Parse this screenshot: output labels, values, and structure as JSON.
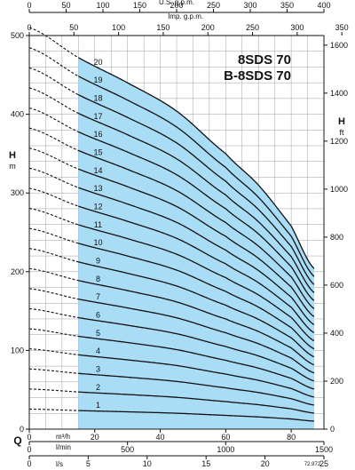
{
  "chart_data": {
    "type": "line",
    "title_lines": [
      "8SDS 70",
      "B-8SDS 70"
    ],
    "y_left": {
      "label": "H",
      "unit": "m",
      "range": [
        0,
        500
      ],
      "ticks": [
        0,
        100,
        200,
        300,
        400,
        500
      ]
    },
    "y_right": {
      "label": "H",
      "unit": "ft",
      "range": [
        0,
        1640
      ],
      "ticks": [
        0,
        200,
        400,
        600,
        800,
        1000,
        1200,
        1400,
        1600
      ]
    },
    "x_main": {
      "label": "Q",
      "unit": "m³/h",
      "range": [
        0,
        90
      ],
      "ticks": [
        0,
        20,
        40,
        60,
        80
      ]
    },
    "x_lmin": {
      "unit": "l/min",
      "range": [
        0,
        1500
      ],
      "ticks": [
        0,
        500,
        1000,
        1500
      ]
    },
    "x_ls": {
      "unit": "l/s",
      "range": [
        0,
        25
      ],
      "ticks": [
        0,
        5,
        10,
        15,
        20,
        25
      ],
      "labeled_ticks": [
        0,
        5,
        10,
        15,
        20,
        25
      ]
    },
    "x_usgpm": {
      "label": "U.S. g.p.m.",
      "range": [
        0,
        400
      ],
      "ticks": [
        0,
        50,
        100,
        150,
        200,
        250,
        300,
        350,
        400
      ]
    },
    "x_impgpm": {
      "label": "Imp. g.p.m.",
      "range": [
        0,
        350
      ],
      "ticks": [
        0,
        50,
        100,
        150,
        200,
        250,
        300,
        350
      ]
    },
    "operating_range": {
      "q_min": 15,
      "q_max": 87
    },
    "stage_curves": {
      "stages": [
        1,
        2,
        3,
        4,
        5,
        6,
        7,
        8,
        9,
        10,
        11,
        12,
        13,
        14,
        15,
        16,
        17,
        18,
        19,
        20
      ],
      "head_per_stage_m": {
        "q": [
          0,
          15,
          30,
          45,
          60,
          70,
          80,
          87
        ],
        "h": [
          25.5,
          23.6,
          22.0,
          20.2,
          17.5,
          15.5,
          12.9,
          10.2
        ]
      }
    },
    "watermark": "72.972"
  }
}
